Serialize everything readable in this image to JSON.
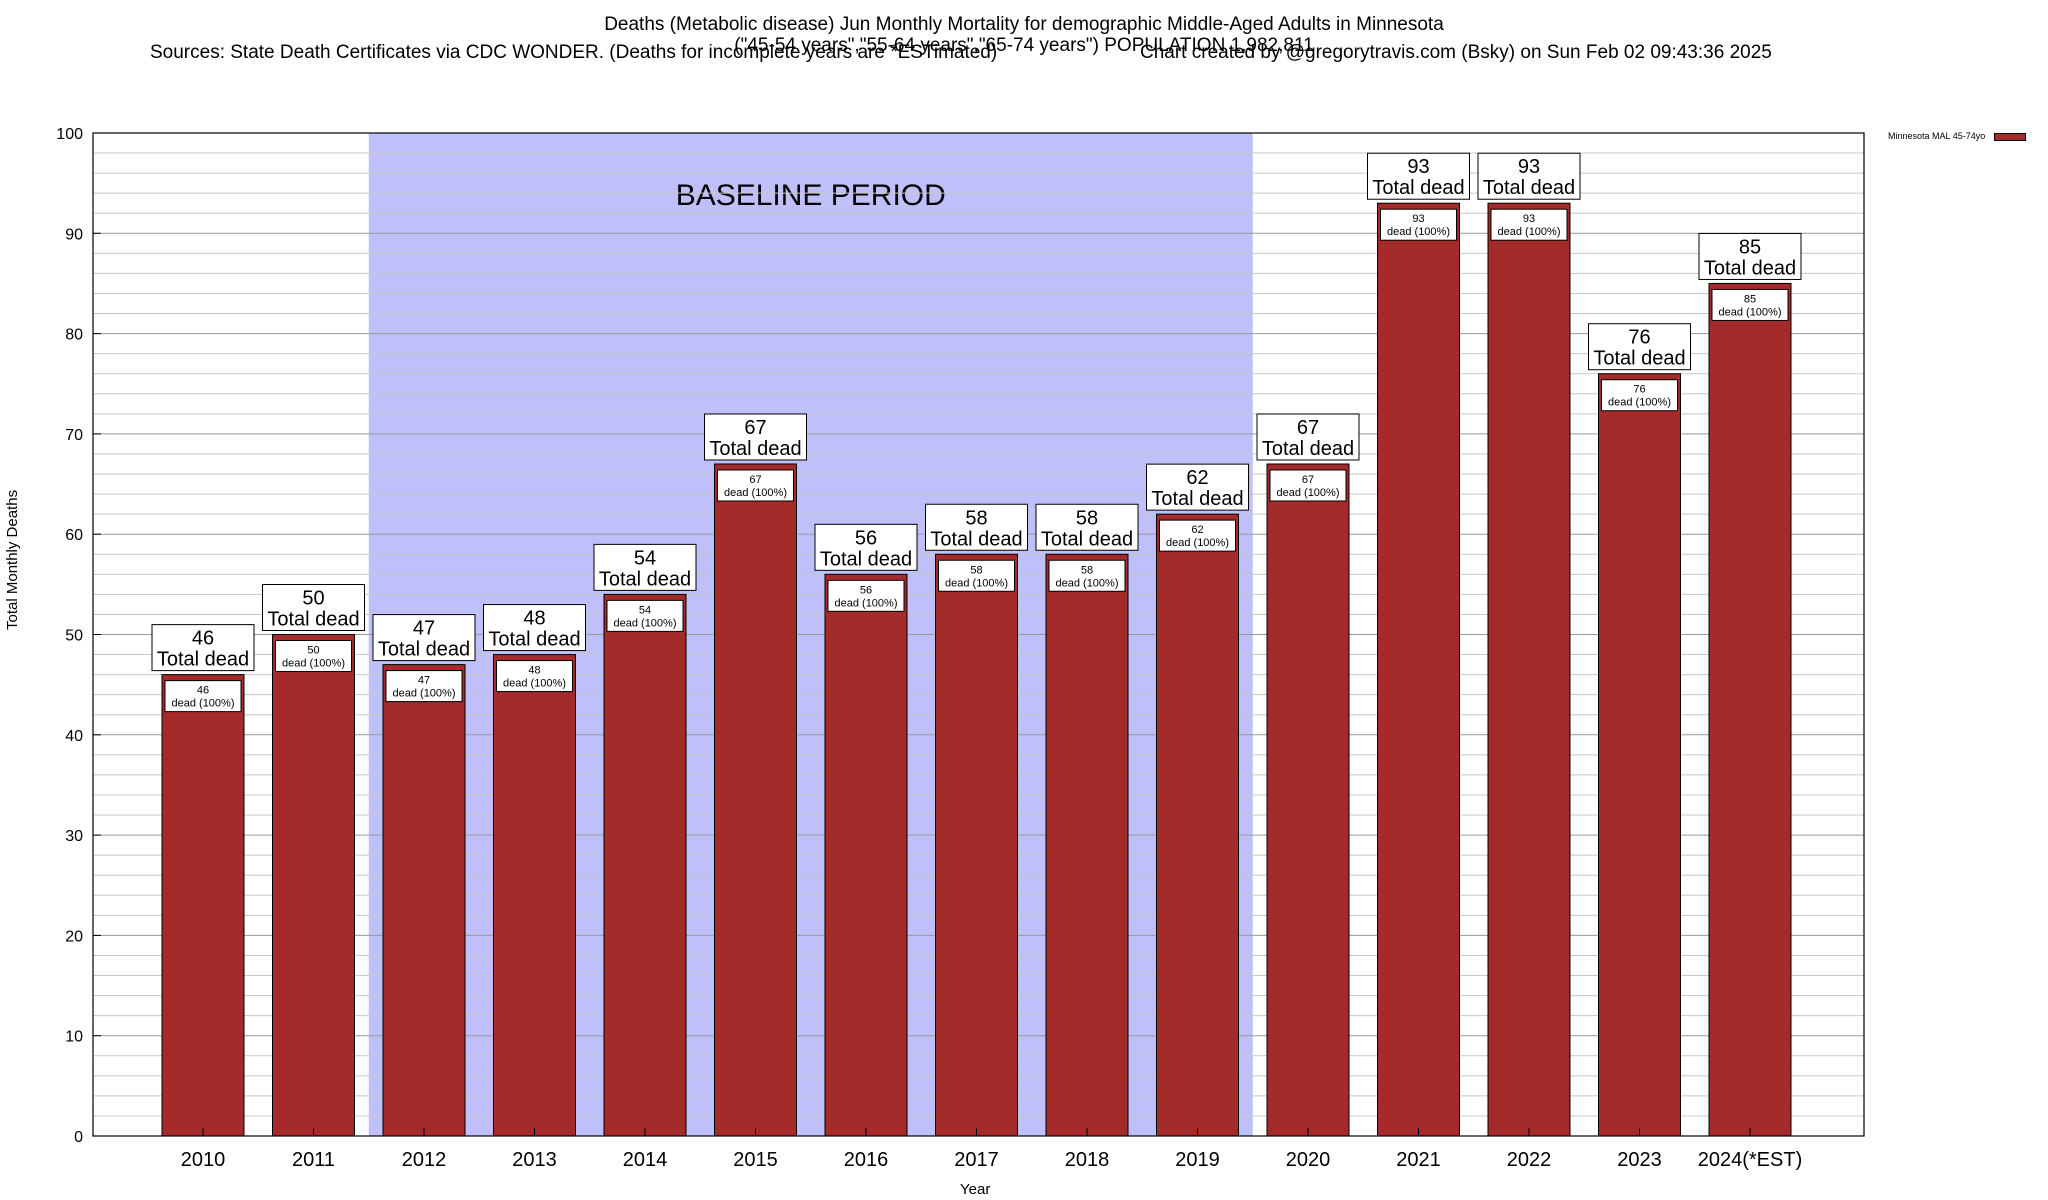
{
  "title": {
    "line1": "Deaths (Metabolic disease) Jun Monthly Mortality for demographic Middle-Aged Adults in Minnesota",
    "line2": "(\"45-54 years\",\"55-64 years\",\"65-74 years\") POPULATION 1,982,811",
    "line3a": "Sources: State Death Certificates via CDC WONDER. (Deaths for incomplete years are *ESTimated)",
    "line3b": "Chart created by @gregorytravis.com (Bsky) on Sun Feb 02 09:43:36 2025"
  },
  "colors": {
    "bar": "#a52a2a",
    "baseline_band": "#bfbffa",
    "grid": "#c8c8c8"
  },
  "chart_data": {
    "type": "bar",
    "title": "Deaths (Metabolic disease) Jun Monthly Mortality for demographic Middle-Aged Adults in Minnesota",
    "xlabel": "Year",
    "ylabel": "Total Monthly Deaths",
    "ylim": [
      0,
      100
    ],
    "yticks": [
      0,
      10,
      20,
      30,
      40,
      50,
      60,
      70,
      80,
      90,
      100
    ],
    "categories": [
      "2010",
      "2011",
      "2012",
      "2013",
      "2014",
      "2015",
      "2016",
      "2017",
      "2018",
      "2019",
      "2020",
      "2021",
      "2022",
      "2023",
      "2024(*EST)"
    ],
    "series": [
      {
        "name": "Minnesota MAL 45-74yo",
        "values": [
          46,
          50,
          47,
          48,
          54,
          67,
          56,
          58,
          58,
          62,
          67,
          93,
          93,
          76,
          85
        ]
      }
    ],
    "total_label": "Total dead",
    "inner_label_suffix": "dead (100%)",
    "baseline_band": {
      "label": "BASELINE PERIOD",
      "from": "2012",
      "to": "2019"
    },
    "legend": {
      "label": "Minnesota MAL 45-74yo",
      "position": "top-right"
    },
    "grid": true
  }
}
